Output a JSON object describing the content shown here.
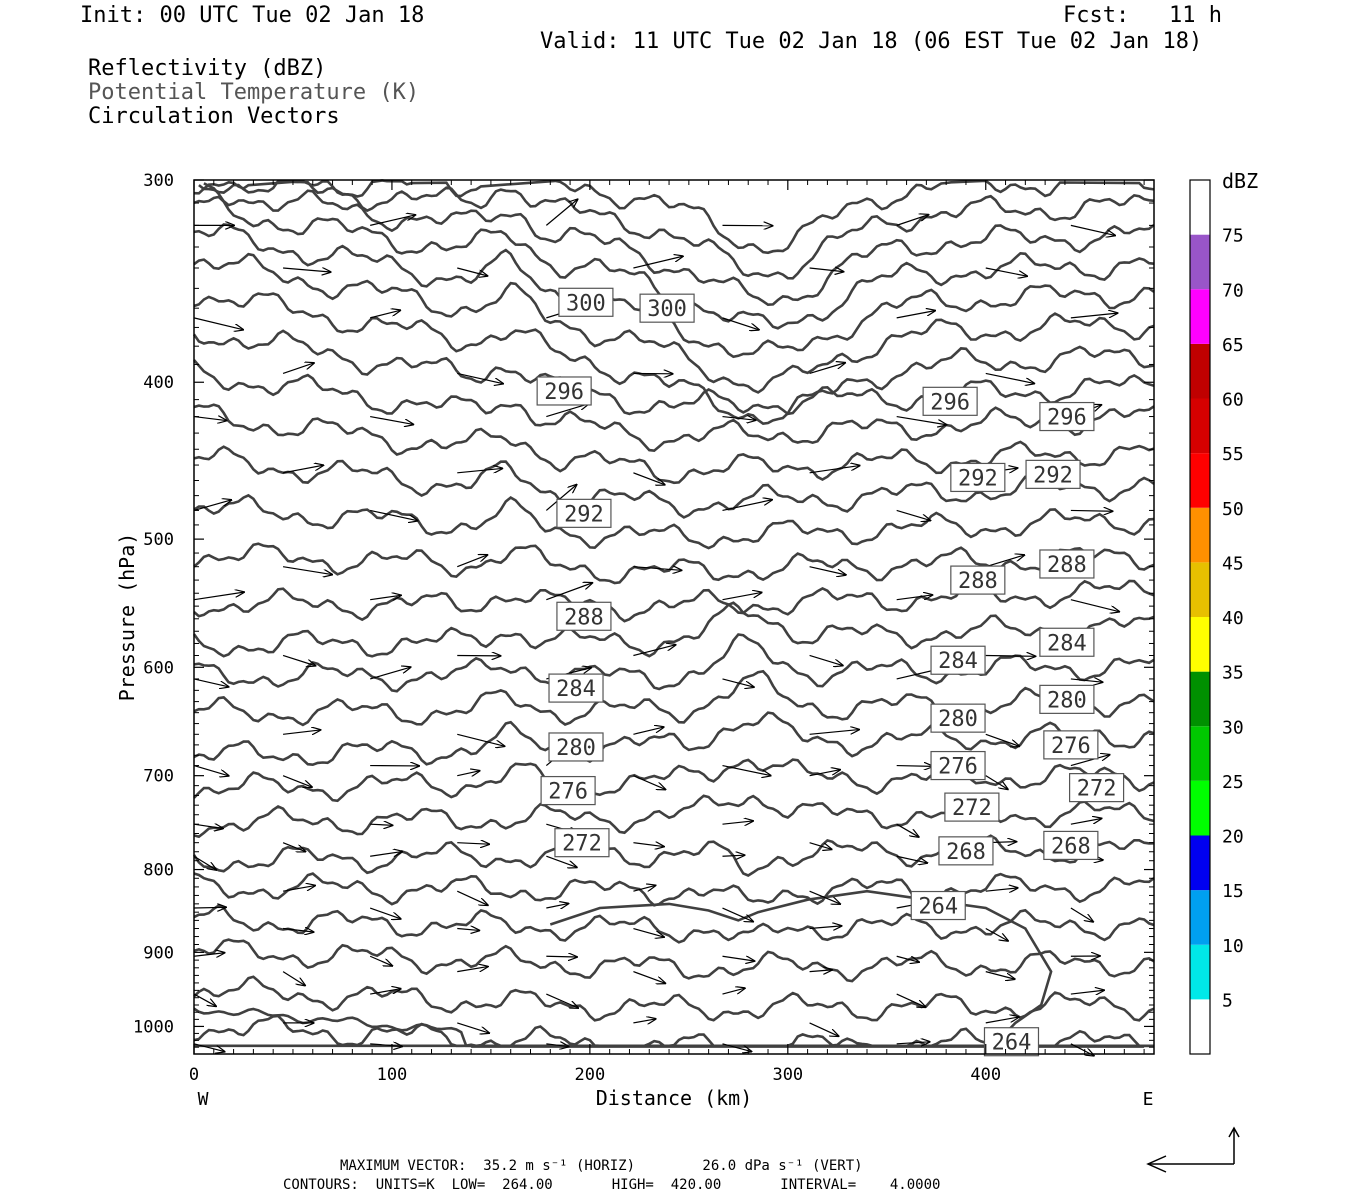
{
  "header": {
    "init": "Init: 00 UTC Tue 02 Jan 18",
    "fcst": "Fcst:   11 h",
    "valid": "Valid: 11 UTC Tue 02 Jan 18 (06 EST Tue 02 Jan 18)",
    "fields": [
      "Reflectivity (dBZ)",
      "Potential Temperature (K)",
      "Circulation Vectors"
    ]
  },
  "footer": {
    "max_vector": "MAXIMUM VECTOR:  35.2 m s⁻¹ (HORIZ)        26.0 dPa s⁻¹ (VERT)",
    "contours": "CONTOURS:  UNITS=K  LOW=  264.00       HIGH=  420.00       INTERVAL=    4.0000"
  },
  "colors": {
    "contour": "#404040",
    "vector": "#000000"
  },
  "chart_data": {
    "type": "contour",
    "xlabel": "Distance (km)",
    "ylabel": "Pressure (hPa)",
    "xlim": [
      0,
      485
    ],
    "ylim": [
      1040,
      300
    ],
    "y_scale": "log",
    "x_ticks": [
      0,
      100,
      200,
      300,
      400
    ],
    "y_ticks": [
      300,
      400,
      500,
      600,
      700,
      800,
      900,
      1000
    ],
    "x_end_labels": {
      "left": "W",
      "right": "E"
    },
    "contour_field": "Potential Temperature (K)",
    "contour_interval": 4,
    "contours": [
      {
        "theta": 264,
        "label_points": [
          {
            "x": 376,
            "p": 842
          },
          {
            "x": 413,
            "p": 1022
          }
        ]
      },
      {
        "theta": 268,
        "label_points": [
          {
            "x": 390,
            "p": 779
          },
          {
            "x": 443,
            "p": 773
          }
        ]
      },
      {
        "theta": 272,
        "label_points": [
          {
            "x": 196,
            "p": 770
          },
          {
            "x": 393,
            "p": 732
          },
          {
            "x": 456,
            "p": 712
          }
        ]
      },
      {
        "theta": 276,
        "label_points": [
          {
            "x": 189,
            "p": 715
          },
          {
            "x": 386,
            "p": 690
          },
          {
            "x": 443,
            "p": 670
          }
        ]
      },
      {
        "theta": 280,
        "label_points": [
          {
            "x": 193,
            "p": 672
          },
          {
            "x": 386,
            "p": 645
          },
          {
            "x": 441,
            "p": 628
          }
        ]
      },
      {
        "theta": 284,
        "label_points": [
          {
            "x": 193,
            "p": 618
          },
          {
            "x": 386,
            "p": 594
          },
          {
            "x": 441,
            "p": 579
          }
        ]
      },
      {
        "theta": 288,
        "label_points": [
          {
            "x": 197,
            "p": 558
          },
          {
            "x": 396,
            "p": 530
          },
          {
            "x": 441,
            "p": 518
          }
        ]
      },
      {
        "theta": 292,
        "label_points": [
          {
            "x": 197,
            "p": 482
          },
          {
            "x": 396,
            "p": 458
          },
          {
            "x": 434,
            "p": 456
          }
        ]
      },
      {
        "theta": 296,
        "label_points": [
          {
            "x": 187,
            "p": 405
          },
          {
            "x": 382,
            "p": 411
          },
          {
            "x": 441,
            "p": 420
          }
        ]
      },
      {
        "theta": 300,
        "label_points": [
          {
            "x": 198,
            "p": 357
          },
          {
            "x": 239,
            "p": 360
          }
        ]
      }
    ],
    "colorbar": {
      "title": "dBZ",
      "levels": [
        5,
        10,
        15,
        20,
        25,
        30,
        35,
        40,
        45,
        50,
        55,
        60,
        65,
        70,
        75
      ],
      "colors": [
        "#ffffff",
        "#00e8e8",
        "#00a0f0",
        "#0000f0",
        "#00ff00",
        "#00c800",
        "#009000",
        "#ffff00",
        "#e7c000",
        "#ff9000",
        "#ff0000",
        "#d60000",
        "#c00000",
        "#ff00ff",
        "#9955c9",
        "#ffffff"
      ]
    },
    "vector_scale": {
      "horiz": "35.2 m s⁻¹",
      "vert": "26.0 dPa s⁻¹"
    }
  }
}
